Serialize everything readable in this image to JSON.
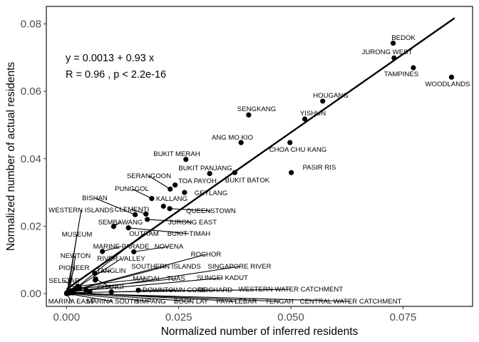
{
  "chart_data": {
    "type": "scatter",
    "xlabel": "Normalized number of inferred residents",
    "ylabel": "Normalized number of actual residents",
    "xlim": [
      -0.0045,
      0.0905
    ],
    "ylim": [
      -0.0038,
      0.0852
    ],
    "xticks": [
      0.0,
      0.025,
      0.05,
      0.075
    ],
    "xtick_labels": [
      "0.000",
      "0.025",
      "0.050",
      "0.075"
    ],
    "yticks": [
      0.0,
      0.02,
      0.04,
      0.06,
      0.08
    ],
    "ytick_labels": [
      "0.00",
      "0.02",
      "0.04",
      "0.06",
      "0.08"
    ],
    "grid": false,
    "regression": {
      "intercept": 0.0013,
      "slope": 0.93,
      "x_range": [
        0.0,
        0.0865
      ],
      "annotation_line1": "y = 0.0013 + 0.93 x",
      "annotation_line2": "R = 0.96 , p < 2.2e-16"
    },
    "points": [
      {
        "label": "BEDOK",
        "x": 0.0728,
        "y": 0.0743
      },
      {
        "label": "JURONG WEST",
        "x": 0.073,
        "y": 0.0699
      },
      {
        "label": "TAMPINES",
        "x": 0.0773,
        "y": 0.067
      },
      {
        "label": "WOODLANDS",
        "x": 0.0858,
        "y": 0.0642
      },
      {
        "label": "HOUGANG",
        "x": 0.0571,
        "y": 0.0571
      },
      {
        "label": "SENGKANG",
        "x": 0.0406,
        "y": 0.053
      },
      {
        "label": "YISHUN",
        "x": 0.0531,
        "y": 0.0518
      },
      {
        "label": "ANG MO KIO",
        "x": 0.0389,
        "y": 0.0448
      },
      {
        "label": "CHOA CHU KANG",
        "x": 0.0498,
        "y": 0.0448
      },
      {
        "label": "BUKIT MERAH",
        "x": 0.0266,
        "y": 0.0398
      },
      {
        "label": "BUKIT PANJANG",
        "x": 0.0319,
        "y": 0.0356
      },
      {
        "label": "BUKIT BATOK",
        "x": 0.0375,
        "y": 0.0359
      },
      {
        "label": "PASIR RIS",
        "x": 0.0501,
        "y": 0.0359
      },
      {
        "label": "SERANGOON",
        "x": 0.0231,
        "y": 0.031
      },
      {
        "label": "TOA PAYOH",
        "x": 0.0242,
        "y": 0.0322
      },
      {
        "label": "GEYLANG",
        "x": 0.0263,
        "y": 0.03
      },
      {
        "label": "PUNGGOL",
        "x": 0.019,
        "y": 0.0282
      },
      {
        "label": "KALLANG",
        "x": 0.0216,
        "y": 0.0259
      },
      {
        "label": "QUEENSTOWN",
        "x": 0.023,
        "y": 0.0252
      },
      {
        "label": "BISHAN",
        "x": 0.0153,
        "y": 0.0234
      },
      {
        "label": "CLEMENTI",
        "x": 0.0177,
        "y": 0.0236
      },
      {
        "label": "JURONG EAST",
        "x": 0.018,
        "y": 0.022
      },
      {
        "label": "WESTERN ISLANDS",
        "x": 0.0001,
        "y": 0.0001
      },
      {
        "label": "SEMBAWANG",
        "x": 0.0105,
        "y": 0.0199
      },
      {
        "label": "BUKIT TIMAH",
        "x": 0.0138,
        "y": 0.0195
      },
      {
        "label": "MUSEUM",
        "x": 0.0003,
        "y": 0.0001
      },
      {
        "label": "OUTRAM",
        "x": 0.0015,
        "y": 0.001
      },
      {
        "label": "MARINE PARADE",
        "x": 0.008,
        "y": 0.0125
      },
      {
        "label": "NOVENA",
        "x": 0.015,
        "y": 0.0124
      },
      {
        "label": "NEWTON",
        "x": 0.0006,
        "y": 0.0003
      },
      {
        "label": "RIVER VALLEY",
        "x": 0.002,
        "y": 0.0015
      },
      {
        "label": "ROCHOR",
        "x": 0.001,
        "y": 0.0008
      },
      {
        "label": "PIONEER",
        "x": 0.0001,
        "y": 0.0003
      },
      {
        "label": "SOUTHERN ISLANDS",
        "x": 0.0005,
        "y": 0.0005
      },
      {
        "label": "SINGAPORE RIVER",
        "x": 0.0008,
        "y": 0.0004
      },
      {
        "label": "TANGLIN",
        "x": 0.0063,
        "y": 0.006
      },
      {
        "label": "MANDAI",
        "x": 0.0025,
        "y": 0.0022
      },
      {
        "label": "TUAS",
        "x": 0.003,
        "y": 0.0015
      },
      {
        "label": "SUNGEI KADUT",
        "x": 0.0012,
        "y": 0.0006
      },
      {
        "label": "SELETAR",
        "x": 0.0022,
        "y": 0.0015
      },
      {
        "label": "CHANGI",
        "x": 0.0065,
        "y": 0.0043
      },
      {
        "label": "DOWNTOWN CORE",
        "x": 0.016,
        "y": 0.001
      },
      {
        "label": "ORCHARD",
        "x": 0.01,
        "y": 0.0005
      },
      {
        "label": "WESTERN WATER CATCHMENT",
        "x": 0.0015,
        "y": 0.0003
      },
      {
        "label": "MARINA EAST",
        "x": 0.0,
        "y": 0.0
      },
      {
        "label": "MARINA SOUTH",
        "x": 0.0002,
        "y": 0.0
      },
      {
        "label": "SIMPANG",
        "x": 0.0003,
        "y": 0.0001
      },
      {
        "label": "BOON LAY",
        "x": 0.0007,
        "y": 0.0002
      },
      {
        "label": "PAYA LEBAR",
        "x": 0.001,
        "y": 0.0003
      },
      {
        "label": "TENGAH",
        "x": 0.0013,
        "y": 0.0002
      },
      {
        "label": "CENTRAL WATER CATCHMENT",
        "x": 0.0004,
        "y": 0.0001
      },
      {
        "label": "",
        "x": 0.0064,
        "y": 0.004
      },
      {
        "label": "",
        "x": 0.0043,
        "y": 0.0011
      },
      {
        "label": "",
        "x": 0.0052,
        "y": 0.0006
      }
    ]
  }
}
